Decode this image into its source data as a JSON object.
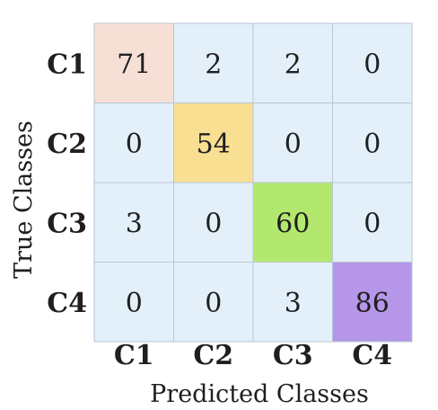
{
  "chart_data": {
    "type": "heatmap",
    "title": "",
    "xlabel": "Predicted Classes",
    "ylabel": "True Classes",
    "x_categories": [
      "C1",
      "C2",
      "C3",
      "C4"
    ],
    "y_categories": [
      "C1",
      "C2",
      "C3",
      "C4"
    ],
    "values": [
      [
        71,
        2,
        2,
        0
      ],
      [
        0,
        54,
        0,
        0
      ],
      [
        3,
        0,
        60,
        0
      ],
      [
        0,
        0,
        3,
        86
      ]
    ],
    "colors": {
      "default_cell": "#e3f0fa",
      "grid_line": "#b9c6d4",
      "diagonal": [
        "#f6e0d6",
        "#f9df92",
        "#b3e86e",
        "#b596e9"
      ]
    },
    "grid": true,
    "legend": "none"
  }
}
